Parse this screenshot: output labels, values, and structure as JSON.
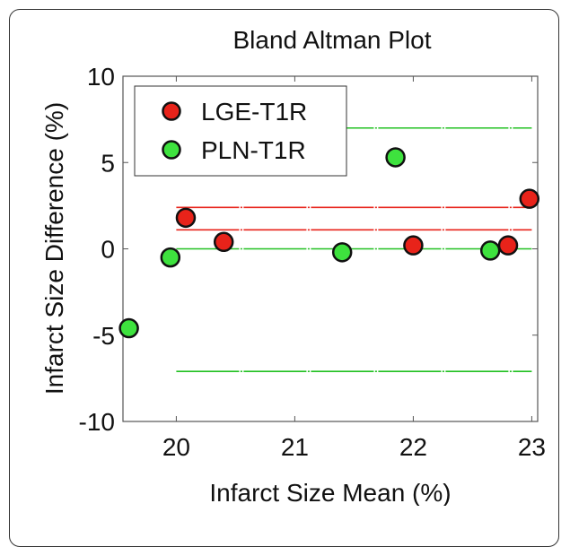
{
  "chart_data": {
    "type": "scatter",
    "title": "Bland Altman Plot",
    "xlabel": "Infarct Size Mean (%)",
    "ylabel": "Infarct Size Difference (%)",
    "xlim": [
      19.55,
      23.05
    ],
    "ylim": [
      -10,
      10
    ],
    "xticks": [
      20,
      21,
      22,
      23
    ],
    "yticks": [
      10,
      5,
      0,
      -5,
      -10
    ],
    "grid": false,
    "legend_position": "top-left",
    "series": [
      {
        "name": "LGE-T1R",
        "color": "#e8231a",
        "points": [
          {
            "x": 20.08,
            "y": 1.8
          },
          {
            "x": 20.4,
            "y": 0.4
          },
          {
            "x": 22.0,
            "y": 0.2
          },
          {
            "x": 22.8,
            "y": 0.2
          },
          {
            "x": 22.98,
            "y": 2.9
          }
        ]
      },
      {
        "name": "PLN-T1R",
        "color": "#3ee23e",
        "points": [
          {
            "x": 19.6,
            "y": -4.6
          },
          {
            "x": 19.95,
            "y": -0.5
          },
          {
            "x": 21.4,
            "y": -0.2
          },
          {
            "x": 21.85,
            "y": 5.3
          },
          {
            "x": 22.65,
            "y": -0.1
          }
        ]
      }
    ],
    "reference_lines": [
      {
        "series": "PLN-T1R",
        "color": "#22c022",
        "y": 7.0,
        "x_range": [
          20.0,
          23.0
        ]
      },
      {
        "series": "PLN-T1R",
        "color": "#22c022",
        "y": 0.0,
        "x_range": [
          20.0,
          23.0
        ]
      },
      {
        "series": "PLN-T1R",
        "color": "#22c022",
        "y": -7.1,
        "x_range": [
          20.0,
          23.0
        ]
      },
      {
        "series": "LGE-T1R",
        "color": "#e8231a",
        "y": 2.4,
        "x_range": [
          20.0,
          23.0
        ]
      },
      {
        "series": "LGE-T1R",
        "color": "#e8231a",
        "y": 1.1,
        "x_range": [
          20.0,
          23.0
        ]
      }
    ]
  }
}
